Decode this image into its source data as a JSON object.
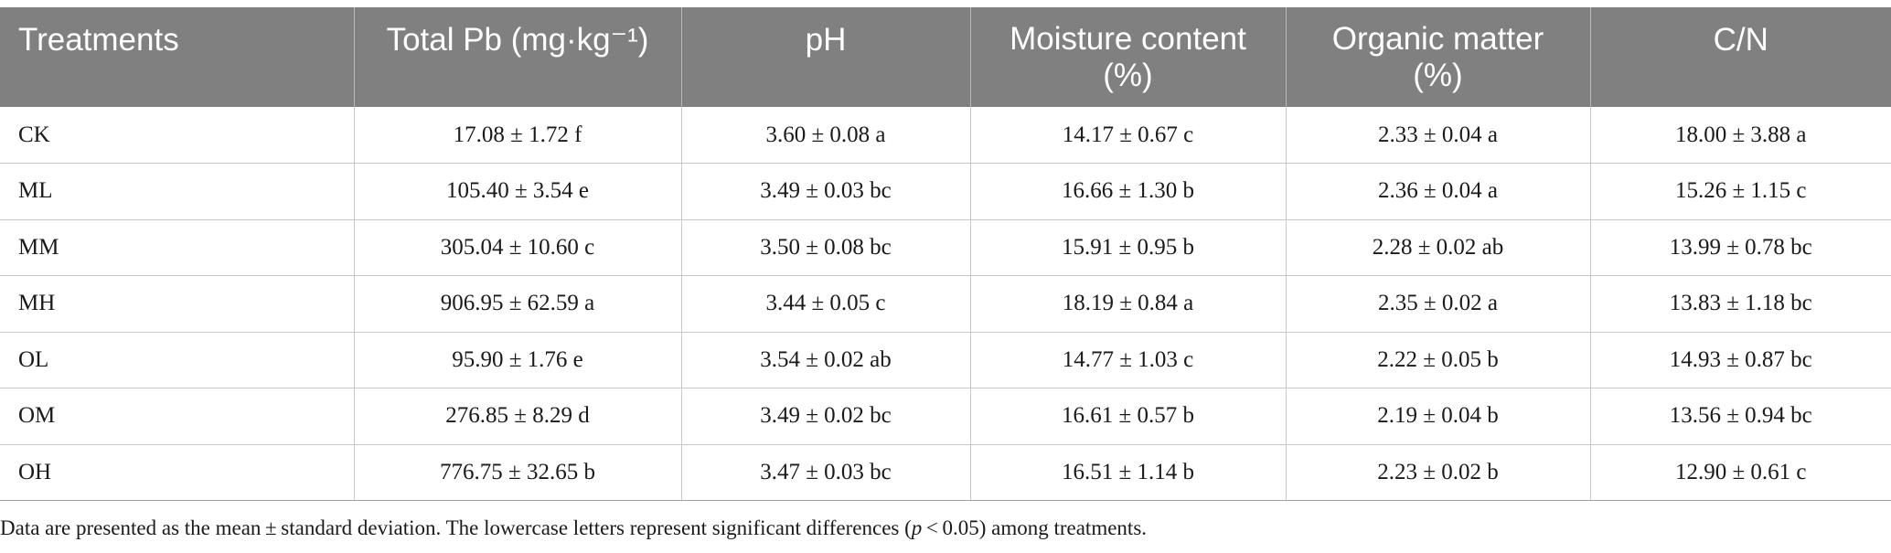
{
  "table": {
    "headers": [
      "Treatments",
      "Total Pb (mg·kg⁻¹)",
      "pH",
      "Moisture content (%)",
      "Organic matter (%)",
      "C/N"
    ],
    "header_lines": {
      "moisture": [
        "Moisture content",
        "(%)"
      ],
      "organic": [
        "Organic matter",
        "(%)"
      ]
    },
    "rows": [
      [
        "CK",
        "17.08 ± 1.72 f",
        "3.60 ± 0.08 a",
        "14.17 ± 0.67 c",
        "2.33 ± 0.04 a",
        "18.00 ± 3.88 a"
      ],
      [
        "ML",
        "105.40 ± 3.54 e",
        "3.49 ± 0.03 bc",
        "16.66 ± 1.30 b",
        "2.36 ± 0.04 a",
        "15.26 ± 1.15 c"
      ],
      [
        "MM",
        "305.04 ± 10.60 c",
        "3.50 ± 0.08 bc",
        "15.91 ± 0.95 b",
        "2.28 ± 0.02 ab",
        "13.99 ± 0.78 bc"
      ],
      [
        "MH",
        "906.95 ± 62.59 a",
        "3.44 ± 0.05 c",
        "18.19 ± 0.84 a",
        "2.35 ± 0.02 a",
        "13.83 ± 1.18 bc"
      ],
      [
        "OL",
        "95.90 ± 1.76 e",
        "3.54 ± 0.02 ab",
        "14.77 ± 1.03 c",
        "2.22 ± 0.05 b",
        "14.93 ± 0.87 bc"
      ],
      [
        "OM",
        "276.85 ± 8.29 d",
        "3.49 ± 0.02 bc",
        "16.61 ± 0.57 b",
        "2.19 ± 0.04 b",
        "13.56 ± 0.94 bc"
      ],
      [
        "OH",
        "776.75 ± 32.65 b",
        "3.47 ± 0.03 bc",
        "16.51 ± 1.14 b",
        "2.23 ± 0.02 b",
        "12.90 ± 0.61 c"
      ]
    ]
  },
  "footnote": {
    "before_italic": "Data are presented as the mean ± standard deviation. The lowercase letters represent significant differences (",
    "italic": "p",
    "after_italic": " < 0.05) among treatments."
  },
  "colors": {
    "header_bg": "#808080",
    "header_text": "#ffffff",
    "grid_line": "#c8c8c8"
  }
}
